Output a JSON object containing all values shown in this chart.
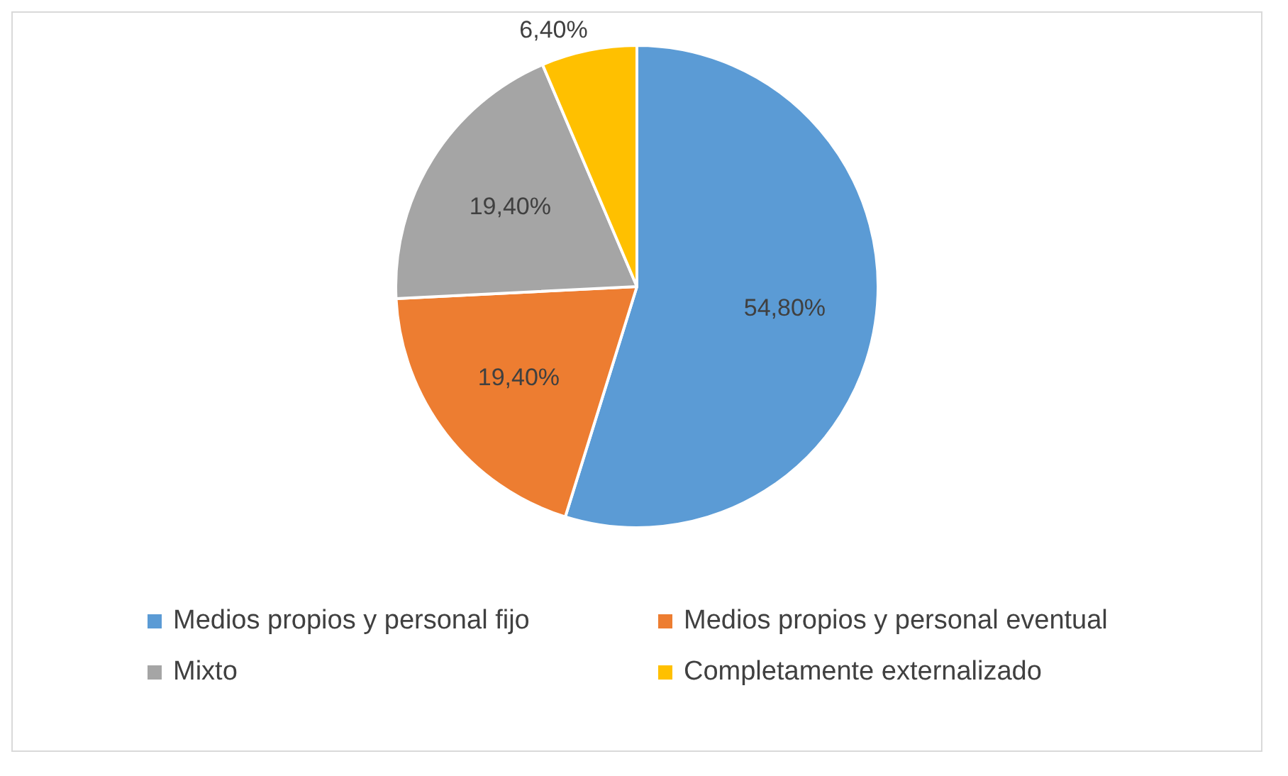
{
  "chart_data": {
    "type": "pie",
    "categories": [
      "Medios propios y personal fijo",
      "Medios propios y personal eventual",
      "Mixto",
      "Completamente externalizado"
    ],
    "values": [
      54.8,
      19.4,
      19.4,
      6.4
    ],
    "colors": [
      "#5b9bd5",
      "#ed7d31",
      "#a5a5a5",
      "#ffc000"
    ],
    "value_labels": [
      "54,80%",
      "19,40%",
      "19,40%",
      "6,40%"
    ],
    "legend": "bottom"
  }
}
